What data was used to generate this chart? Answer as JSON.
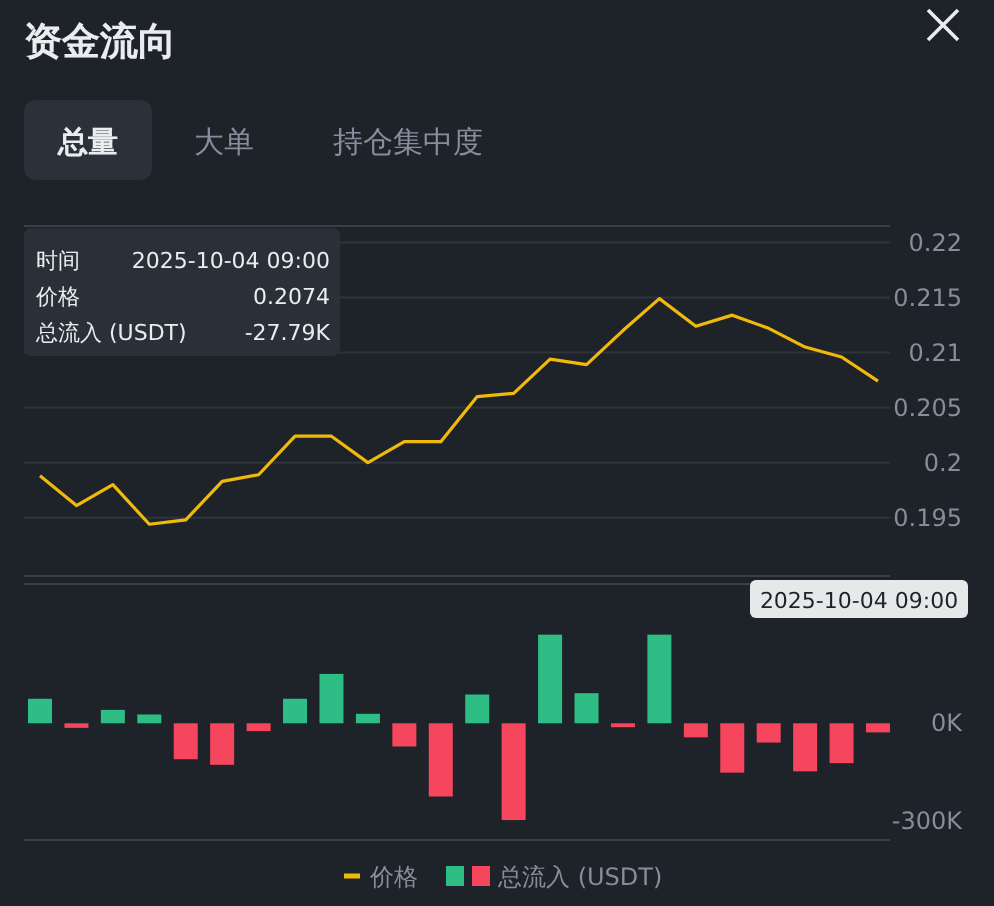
{
  "chart_data": [
    {
      "type": "line",
      "title": "资金流向",
      "annotations": [
        "总量",
        "大单",
        "持仓集中度",
        "时间",
        "2025-10-04 09:00",
        "价格",
        "0.2074",
        "总流入 (USDT)",
        "-27.79K"
      ],
      "categories": [
        null,
        null,
        null,
        null,
        null,
        null,
        null,
        null,
        null,
        null,
        null,
        null,
        null,
        null,
        null,
        null,
        null,
        null,
        null,
        null,
        null,
        null,
        null,
        null
      ],
      "series": [
        {
          "name": "价格",
          "color": "#f0b90b",
          "values": [
            0.1988,
            0.1961,
            0.198,
            0.1944,
            0.1948,
            0.1983,
            0.1989,
            0.2024,
            0.2024,
            0.2,
            0.2019,
            0.2019,
            0.206,
            0.2063,
            0.2094,
            0.2089,
            0.212,
            0.2149,
            0.2124,
            0.2134,
            0.2122,
            0.2105,
            0.2096,
            0.2074
          ]
        }
      ],
      "ylim": [
        0.1897,
        0.2215
      ],
      "yticks": [
        0.195,
        0.2,
        0.205,
        0.21,
        0.215,
        0.22
      ],
      "grid": "y",
      "legend": "bottom",
      "marker": "none"
    },
    {
      "type": "bar",
      "annotations": [
        "2025-10-04 09:00"
      ],
      "categories": [
        null,
        null,
        null,
        null,
        null,
        null,
        null,
        null,
        null,
        null,
        null,
        null,
        null,
        null,
        null,
        null,
        null,
        null,
        null,
        null,
        null,
        null,
        null,
        null
      ],
      "series": [
        {
          "name": "总流入 (USDT)",
          "values": [
            75,
            -14,
            41,
            27,
            -110,
            -127,
            -24,
            75,
            151,
            29,
            -71,
            -224,
            88,
            -296,
            271,
            92,
            -12,
            271,
            -43,
            -151,
            -59,
            -147,
            -122,
            -27.79
          ],
          "colors": [
            "#2ebd85",
            "#f6465d",
            "#2ebd85",
            "#2ebd85",
            "#f6465d",
            "#f6465d",
            "#f6465d",
            "#2ebd85",
            "#2ebd85",
            "#2ebd85",
            "#f6465d",
            "#f6465d",
            "#2ebd85",
            "#f6465d",
            "#2ebd85",
            "#2ebd85",
            "#f6465d",
            "#2ebd85",
            "#f6465d",
            "#f6465d",
            "#f6465d",
            "#f6465d",
            "#f6465d",
            "#f6465d"
          ]
        }
      ],
      "ylim": [
        -357,
        426
      ],
      "yticks": [
        {
          "value": 0,
          "label": "0K"
        },
        {
          "value": -300,
          "label": "-300K"
        }
      ],
      "legend": "bottom"
    }
  ]
}
